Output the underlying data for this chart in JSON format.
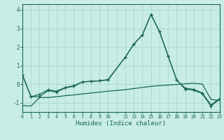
{
  "xlabel": "Humidex (Indice chaleur)",
  "background_color": "#c8ece6",
  "grid_color": "#a8d8d0",
  "line_color": "#1a6655",
  "x": [
    0,
    1,
    2,
    3,
    4,
    5,
    6,
    7,
    8,
    9,
    10,
    12,
    13,
    14,
    15,
    16,
    17,
    18,
    19,
    20,
    21,
    22,
    23
  ],
  "y_main": [
    0.5,
    -0.68,
    -0.68,
    -0.35,
    -0.43,
    -0.2,
    -0.12,
    0.12,
    0.15,
    0.18,
    0.22,
    1.45,
    2.15,
    2.65,
    3.75,
    2.82,
    1.52,
    0.22,
    -0.28,
    -0.32,
    -0.52,
    -1.18,
    -0.82
  ],
  "y_mid": [
    0.5,
    -0.68,
    -0.55,
    -0.3,
    -0.38,
    -0.18,
    -0.08,
    0.12,
    0.15,
    0.18,
    0.25,
    1.45,
    2.15,
    2.65,
    3.75,
    2.82,
    1.52,
    0.22,
    -0.22,
    -0.28,
    -0.48,
    -1.12,
    -0.78
  ],
  "y_lower": [
    -1.15,
    -1.18,
    -0.72,
    -0.72,
    -0.68,
    -0.62,
    -0.58,
    -0.53,
    -0.48,
    -0.43,
    -0.38,
    -0.3,
    -0.24,
    -0.18,
    -0.12,
    -0.08,
    -0.05,
    -0.02,
    0.02,
    0.05,
    0.0,
    -0.82,
    -0.88
  ],
  "ylim": [
    -1.5,
    4.3
  ],
  "xlim": [
    0,
    23
  ],
  "yticks": [
    -1,
    0,
    1,
    2,
    3,
    4
  ],
  "xtick_labels": [
    "0",
    "1",
    "2",
    "3",
    "4",
    "5",
    "6",
    "7",
    "8",
    "9",
    "10",
    "",
    "12",
    "13",
    "14",
    "15",
    "16",
    "17",
    "18",
    "19",
    "20",
    "21",
    "22",
    "23"
  ],
  "xtick_positions": [
    0,
    1,
    2,
    3,
    4,
    5,
    6,
    7,
    8,
    9,
    10,
    11,
    12,
    13,
    14,
    15,
    16,
    17,
    18,
    19,
    20,
    21,
    22,
    23
  ]
}
